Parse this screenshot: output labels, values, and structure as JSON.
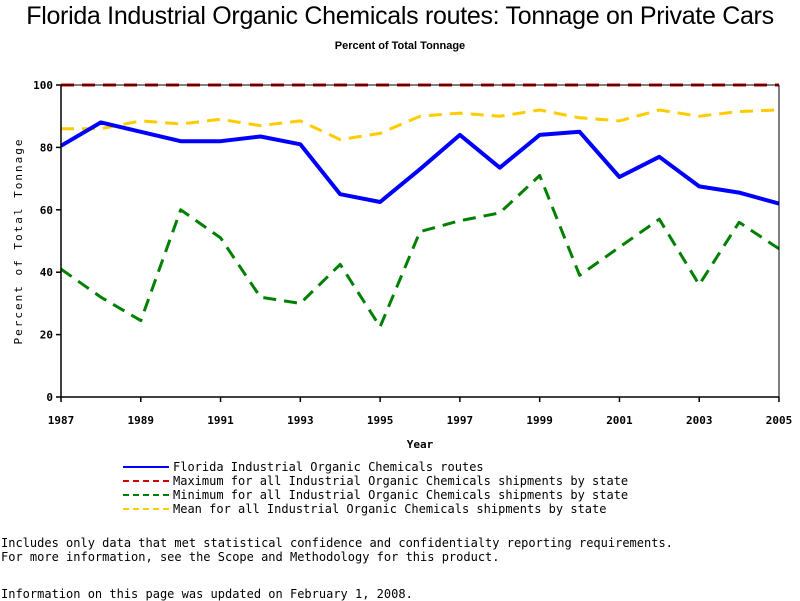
{
  "chart_data": {
    "type": "line",
    "title": "Florida Industrial Organic Chemicals routes: Tonnage on Private Cars",
    "subtitle": "Percent of Total Tonnage",
    "xlabel": "Year",
    "ylabel": "Percent of Total Tonnage",
    "x": [
      1987,
      1988,
      1989,
      1990,
      1991,
      1992,
      1993,
      1994,
      1995,
      1996,
      1997,
      1998,
      1999,
      2000,
      2001,
      2002,
      2003,
      2004,
      2005
    ],
    "xlim": [
      1987,
      2005
    ],
    "ylim": [
      0,
      100
    ],
    "xticks": [
      "1987",
      "1989",
      "1991",
      "1993",
      "1995",
      "1997",
      "1999",
      "2001",
      "2003",
      "2005"
    ],
    "yticks": [
      "0",
      "20",
      "40",
      "60",
      "80",
      "100"
    ],
    "grid": false,
    "legend_position": "bottom",
    "series": [
      {
        "name": "Florida Industrial Organic Chemicals routes",
        "color": "#0000ff",
        "style": "solid",
        "values": [
          80.5,
          88,
          85,
          82,
          82,
          83.5,
          81,
          65,
          62.5,
          73,
          84,
          73.5,
          84,
          85,
          70.5,
          77,
          67.5,
          65.5,
          62
        ]
      },
      {
        "name": "Maximum for all Industrial Organic Chemicals shipments by state",
        "color": "#cc0000",
        "style": "dashed",
        "values": [
          100,
          100,
          100,
          100,
          100,
          100,
          100,
          100,
          100,
          100,
          100,
          100,
          100,
          100,
          100,
          100,
          100,
          100,
          100
        ]
      },
      {
        "name": "Minimum for all Industrial Organic Chemicals shipments by state",
        "color": "#008000",
        "style": "dashed",
        "values": [
          41,
          32,
          24.5,
          60,
          51,
          32,
          30,
          42.5,
          22.5,
          53,
          56.5,
          59,
          71,
          39,
          48,
          57,
          36,
          56,
          47.5
        ]
      },
      {
        "name": "Mean for all Industrial Organic Chemicals shipments by state",
        "color": "#ffcc00",
        "style": "dashed",
        "values": [
          86,
          86,
          88.5,
          87.5,
          89,
          87,
          88.5,
          82.5,
          84.5,
          90,
          91,
          90,
          92,
          89.5,
          88.5,
          92,
          90,
          91.5,
          92
        ]
      }
    ]
  },
  "notes": {
    "line1": "Includes only data that met statistical confidence and confidentialty reporting requirements.",
    "line2": "For more information, see the Scope and Methodology for this product.",
    "updated": "Information on this page was updated on February 1, 2008."
  }
}
